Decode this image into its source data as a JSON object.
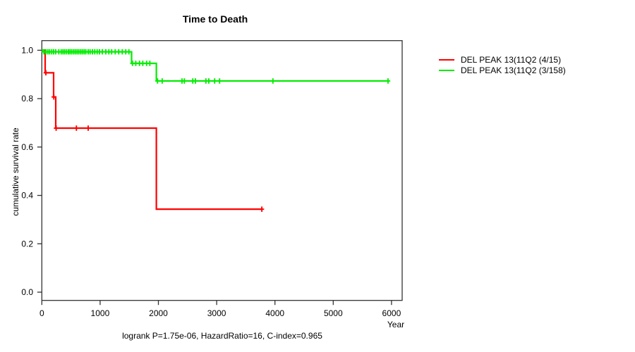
{
  "chart_data": {
    "type": "line",
    "subtype": "kaplan-meier-step",
    "title": "Time to Death",
    "xlabel": "Year",
    "ylabel": "cumulative survival rate",
    "footer": "logrank P=1.75e-06, HazardRatio=16, C-index=0.965",
    "xticks": [
      0,
      1000,
      2000,
      3000,
      4000,
      5000,
      6000
    ],
    "yticks": [
      0.0,
      0.2,
      0.4,
      0.6,
      0.8,
      1.0
    ],
    "xlim": [
      0,
      6180
    ],
    "ylim": [
      -0.035,
      1.04
    ],
    "grid": false,
    "legend_position": "right-outside",
    "axis_color": "#333333",
    "series": [
      {
        "name": "DEL PEAK 13(11Q2 (4/15)",
        "color": "#ff0000",
        "steps": [
          [
            0,
            1.0
          ],
          [
            57,
            0.907
          ],
          [
            202,
            0.807
          ],
          [
            238,
            0.678
          ],
          [
            1965,
            0.343
          ],
          [
            3775,
            0.343
          ]
        ],
        "censors": [
          [
            69,
            0.907
          ],
          [
            205,
            0.807
          ],
          [
            245,
            0.678
          ],
          [
            593,
            0.678
          ],
          [
            795,
            0.678
          ],
          [
            3775,
            0.343
          ]
        ]
      },
      {
        "name": "DEL PEAK 13(11Q2 (3/158)",
        "color": "#00ee00",
        "steps": [
          [
            0,
            1.0
          ],
          [
            25,
            0.9937
          ],
          [
            1540,
            0.946
          ],
          [
            1965,
            0.873
          ],
          [
            5940,
            0.873
          ]
        ],
        "censors": [
          [
            36,
            0.9937
          ],
          [
            69,
            0.9937
          ],
          [
            102,
            0.9937
          ],
          [
            133,
            0.9937
          ],
          [
            169,
            0.9937
          ],
          [
            202,
            0.9937
          ],
          [
            238,
            0.9937
          ],
          [
            291,
            0.9937
          ],
          [
            332,
            0.9937
          ],
          [
            363,
            0.9937
          ],
          [
            392,
            0.9937
          ],
          [
            424,
            0.9937
          ],
          [
            456,
            0.9937
          ],
          [
            484,
            0.9937
          ],
          [
            513,
            0.9937
          ],
          [
            545,
            0.9937
          ],
          [
            574,
            0.9937
          ],
          [
            605,
            0.9937
          ],
          [
            634,
            0.9937
          ],
          [
            666,
            0.9937
          ],
          [
            695,
            0.9937
          ],
          [
            726,
            0.9937
          ],
          [
            755,
            0.9937
          ],
          [
            795,
            0.9937
          ],
          [
            828,
            0.9937
          ],
          [
            868,
            0.9937
          ],
          [
            908,
            0.9937
          ],
          [
            949,
            0.9937
          ],
          [
            989,
            0.9937
          ],
          [
            1037,
            0.9937
          ],
          [
            1098,
            0.9937
          ],
          [
            1150,
            0.9937
          ],
          [
            1198,
            0.9937
          ],
          [
            1259,
            0.9937
          ],
          [
            1319,
            0.9937
          ],
          [
            1380,
            0.9937
          ],
          [
            1440,
            0.9937
          ],
          [
            1494,
            0.9937
          ],
          [
            1555,
            0.946
          ],
          [
            1612,
            0.946
          ],
          [
            1676,
            0.946
          ],
          [
            1732,
            0.946
          ],
          [
            1797,
            0.946
          ],
          [
            1853,
            0.946
          ],
          [
            1985,
            0.873
          ],
          [
            2065,
            0.873
          ],
          [
            2405,
            0.873
          ],
          [
            2445,
            0.873
          ],
          [
            2590,
            0.873
          ],
          [
            2635,
            0.873
          ],
          [
            2815,
            0.873
          ],
          [
            2865,
            0.873
          ],
          [
            2965,
            0.873
          ],
          [
            3050,
            0.873
          ],
          [
            3965,
            0.873
          ],
          [
            5940,
            0.873
          ]
        ]
      }
    ]
  }
}
